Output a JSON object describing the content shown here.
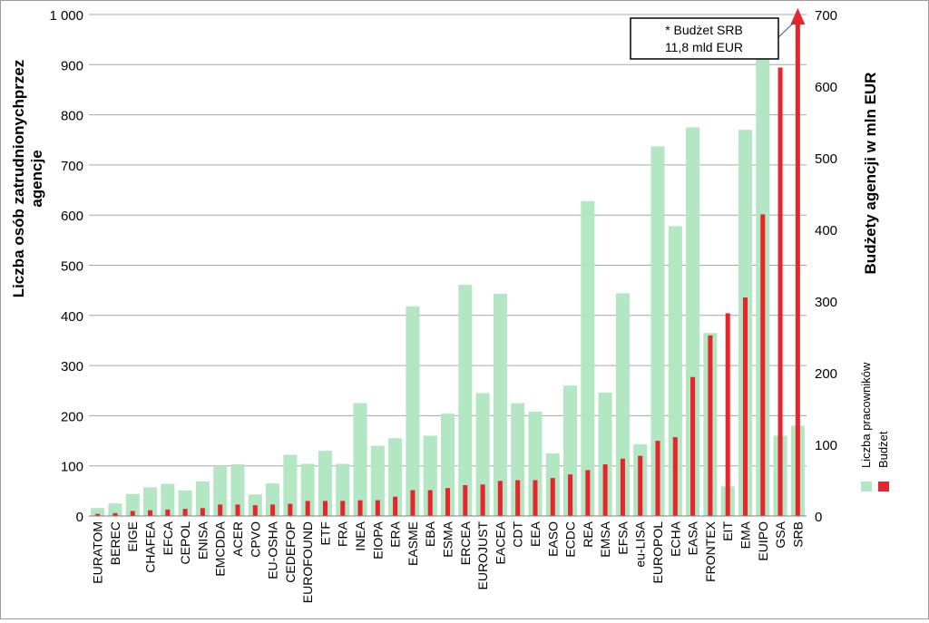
{
  "chart_data": {
    "type": "bar",
    "categories": [
      "EURATOM",
      "BEREC",
      "EIGE",
      "CHAFEA",
      "EFCA",
      "CEPOL",
      "ENISA",
      "EMCDDA",
      "ACER",
      "CPVO",
      "EU-OSHA",
      "CEDEFOP",
      "EUROFOUND",
      "ETF",
      "FRA",
      "INEA",
      "EIOPA",
      "ERA",
      "EASME",
      "EBA",
      "ESMA",
      "ERCEA",
      "EUROJUST",
      "EACEA",
      "CDT",
      "EEA",
      "EASO",
      "ECDC",
      "REA",
      "EMSA",
      "EFSA",
      "eu-LISA",
      "EUROPOL",
      "ECHA",
      "EASA",
      "FRONTEX",
      "EIT",
      "EMA",
      "EUIPO",
      "GSA",
      "SRB"
    ],
    "series": [
      {
        "name": "Liczba pracowników",
        "axis": "left",
        "color": "#b3e6c2",
        "values": [
          16,
          25,
          44,
          57,
          64,
          51,
          69,
          100,
          103,
          43,
          65,
          122,
          104,
          130,
          104,
          225,
          140,
          155,
          418,
          160,
          204,
          461,
          245,
          443,
          225,
          208,
          125,
          260,
          628,
          246,
          444,
          143,
          737,
          578,
          775,
          365,
          59,
          770,
          915,
          160,
          180
        ]
      },
      {
        "name": "Budżet",
        "axis": "right",
        "color": "#e8242c",
        "values": [
          3,
          4,
          7,
          8,
          9,
          10,
          11,
          16,
          16,
          15,
          16,
          17,
          21,
          21,
          21,
          22,
          22,
          27,
          36,
          36,
          39,
          43,
          44,
          49,
          50,
          50,
          53,
          58,
          64,
          72,
          80,
          84,
          105,
          110,
          194,
          252,
          283,
          305,
          421,
          626,
          700
        ]
      }
    ],
    "y_left": {
      "label": "Liczba osób zatrudnionychprzez agencje",
      "ylim": [
        0,
        1000
      ],
      "ticks": [
        0,
        100,
        200,
        300,
        400,
        500,
        600,
        700,
        800,
        900,
        1000
      ],
      "tick_labels": [
        "0",
        "100",
        "200",
        "300",
        "400",
        "500",
        "600",
        "700",
        "800",
        "900",
        "1 000"
      ]
    },
    "y_right": {
      "label": "Budżety agencji w mln EUR",
      "ylim": [
        0,
        700
      ],
      "ticks": [
        0,
        100,
        200,
        300,
        400,
        500,
        600,
        700
      ],
      "tick_labels": [
        "0",
        "100",
        "200",
        "300",
        "400",
        "500",
        "600",
        "700"
      ]
    },
    "grid": true,
    "legend": {
      "placement": "right",
      "entries": [
        "Liczba pracowników",
        "Budżet"
      ]
    },
    "annotation": {
      "line1": "* Budżet SRB",
      "line2": "11,8 mld EUR",
      "target": "SRB"
    }
  }
}
